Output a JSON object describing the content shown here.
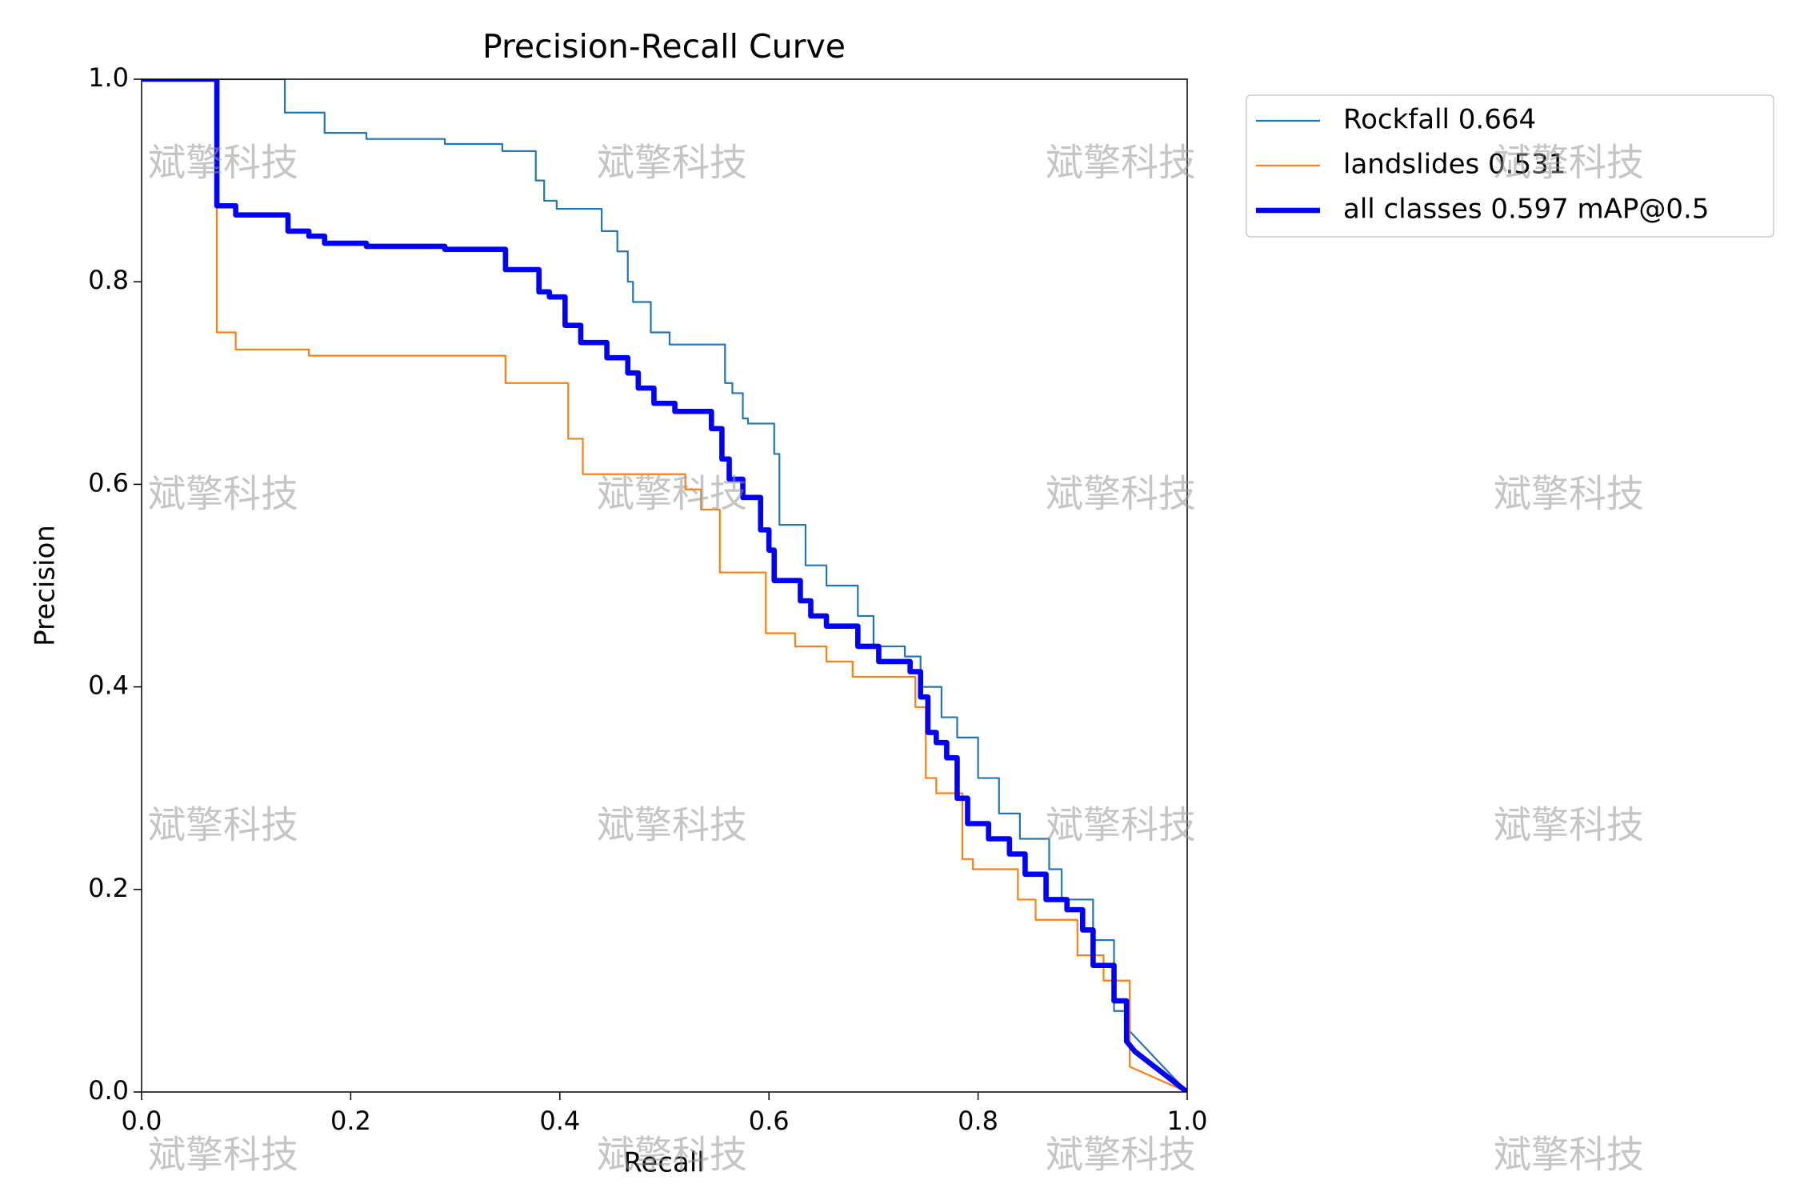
{
  "chart_data": {
    "type": "line",
    "title": "Precision-Recall Curve",
    "x_label": "Recall",
    "y_label": "Precision",
    "xlim": [
      0,
      1
    ],
    "ylim": [
      0,
      1
    ],
    "xticks": [
      {
        "value": 0,
        "label": "0.0"
      },
      0.2,
      0.4,
      0.6,
      0.8,
      {
        "value": 1,
        "label": "1.0"
      }
    ],
    "yticks": [
      {
        "value": 0,
        "label": "0.0"
      },
      0.2,
      0.4,
      0.6,
      0.8,
      {
        "value": 1,
        "label": "1.0"
      }
    ],
    "legend": "outside-upper-right",
    "watermark": "斌擎科技",
    "series": [
      {
        "name": "Rockfall 0.664",
        "color": "#1f77b4",
        "linewidth": 1,
        "x": [
          0,
          0.137,
          0.137,
          0.175,
          0.175,
          0.215,
          0.215,
          0.29,
          0.29,
          0.345,
          0.345,
          0.377,
          0.377,
          0.385,
          0.385,
          0.397,
          0.397,
          0.44,
          0.44,
          0.455,
          0.455,
          0.465,
          0.465,
          0.47,
          0.47,
          0.487,
          0.487,
          0.505,
          0.505,
          0.558,
          0.558,
          0.565,
          0.565,
          0.575,
          0.575,
          0.58,
          0.58,
          0.605,
          0.605,
          0.61,
          0.61,
          0.635,
          0.635,
          0.655,
          0.655,
          0.685,
          0.685,
          0.7,
          0.7,
          0.73,
          0.73,
          0.745,
          0.745,
          0.765,
          0.765,
          0.78,
          0.78,
          0.8,
          0.8,
          0.82,
          0.82,
          0.84,
          0.84,
          0.868,
          0.868,
          0.88,
          0.88,
          0.91,
          0.91,
          0.93,
          0.93,
          0.945,
          0.945,
          1
        ],
        "values": [
          1,
          1,
          0.967,
          0.967,
          0.947,
          0.947,
          0.941,
          0.941,
          0.936,
          0.936,
          0.929,
          0.929,
          0.9,
          0.9,
          0.88,
          0.88,
          0.872,
          0.872,
          0.85,
          0.85,
          0.83,
          0.83,
          0.8,
          0.8,
          0.78,
          0.78,
          0.75,
          0.75,
          0.738,
          0.738,
          0.7,
          0.7,
          0.69,
          0.69,
          0.665,
          0.665,
          0.66,
          0.66,
          0.63,
          0.63,
          0.56,
          0.56,
          0.52,
          0.52,
          0.5,
          0.5,
          0.47,
          0.47,
          0.44,
          0.44,
          0.43,
          0.43,
          0.4,
          0.4,
          0.37,
          0.37,
          0.35,
          0.35,
          0.31,
          0.31,
          0.275,
          0.275,
          0.25,
          0.25,
          0.22,
          0.22,
          0.19,
          0.19,
          0.15,
          0.15,
          0.08,
          0.08,
          0.06,
          0
        ]
      },
      {
        "name": "landslides 0.531",
        "color": "#ff7f0e",
        "linewidth": 1,
        "x": [
          0,
          0.072,
          0.072,
          0.09,
          0.09,
          0.16,
          0.16,
          0.348,
          0.348,
          0.408,
          0.408,
          0.422,
          0.422,
          0.52,
          0.52,
          0.535,
          0.535,
          0.553,
          0.553,
          0.597,
          0.597,
          0.625,
          0.625,
          0.655,
          0.655,
          0.68,
          0.68,
          0.74,
          0.74,
          0.75,
          0.75,
          0.76,
          0.76,
          0.785,
          0.785,
          0.795,
          0.795,
          0.838,
          0.838,
          0.855,
          0.855,
          0.895,
          0.895,
          0.92,
          0.92,
          0.945,
          0.945,
          1
        ],
        "values": [
          1,
          1,
          0.75,
          0.75,
          0.733,
          0.733,
          0.727,
          0.727,
          0.7,
          0.7,
          0.645,
          0.645,
          0.61,
          0.61,
          0.595,
          0.595,
          0.575,
          0.575,
          0.513,
          0.513,
          0.453,
          0.453,
          0.44,
          0.44,
          0.425,
          0.425,
          0.41,
          0.41,
          0.38,
          0.38,
          0.31,
          0.31,
          0.295,
          0.295,
          0.23,
          0.23,
          0.22,
          0.22,
          0.19,
          0.19,
          0.17,
          0.17,
          0.135,
          0.135,
          0.11,
          0.11,
          0.025,
          0
        ]
      },
      {
        "name": "all classes 0.597 mAP@0.5",
        "color": "#0000ff",
        "linewidth": 3,
        "x": [
          0,
          0.072,
          0.072,
          0.09,
          0.09,
          0.14,
          0.14,
          0.16,
          0.16,
          0.175,
          0.175,
          0.215,
          0.215,
          0.29,
          0.29,
          0.348,
          0.348,
          0.38,
          0.38,
          0.39,
          0.39,
          0.405,
          0.405,
          0.42,
          0.42,
          0.445,
          0.445,
          0.465,
          0.465,
          0.475,
          0.475,
          0.49,
          0.49,
          0.51,
          0.51,
          0.545,
          0.545,
          0.555,
          0.555,
          0.562,
          0.562,
          0.575,
          0.575,
          0.592,
          0.592,
          0.6,
          0.6,
          0.605,
          0.605,
          0.63,
          0.63,
          0.64,
          0.64,
          0.655,
          0.655,
          0.685,
          0.685,
          0.705,
          0.705,
          0.735,
          0.735,
          0.745,
          0.745,
          0.752,
          0.752,
          0.76,
          0.76,
          0.77,
          0.77,
          0.78,
          0.78,
          0.79,
          0.79,
          0.81,
          0.81,
          0.83,
          0.83,
          0.845,
          0.845,
          0.865,
          0.865,
          0.885,
          0.885,
          0.9,
          0.9,
          0.91,
          0.91,
          0.93,
          0.93,
          0.942,
          0.942,
          0.95,
          1
        ],
        "values": [
          1,
          1,
          0.875,
          0.875,
          0.866,
          0.866,
          0.85,
          0.85,
          0.845,
          0.845,
          0.838,
          0.838,
          0.835,
          0.835,
          0.832,
          0.832,
          0.812,
          0.812,
          0.79,
          0.79,
          0.785,
          0.785,
          0.757,
          0.757,
          0.74,
          0.74,
          0.725,
          0.725,
          0.71,
          0.71,
          0.695,
          0.695,
          0.68,
          0.68,
          0.672,
          0.672,
          0.655,
          0.655,
          0.625,
          0.625,
          0.605,
          0.605,
          0.587,
          0.587,
          0.555,
          0.555,
          0.535,
          0.535,
          0.505,
          0.505,
          0.485,
          0.485,
          0.47,
          0.47,
          0.46,
          0.46,
          0.44,
          0.44,
          0.425,
          0.425,
          0.415,
          0.415,
          0.39,
          0.39,
          0.355,
          0.355,
          0.345,
          0.345,
          0.33,
          0.33,
          0.29,
          0.29,
          0.265,
          0.265,
          0.25,
          0.25,
          0.235,
          0.235,
          0.215,
          0.215,
          0.19,
          0.19,
          0.18,
          0.18,
          0.16,
          0.16,
          0.125,
          0.125,
          0.09,
          0.09,
          0.05,
          0.04,
          0
        ]
      }
    ]
  }
}
